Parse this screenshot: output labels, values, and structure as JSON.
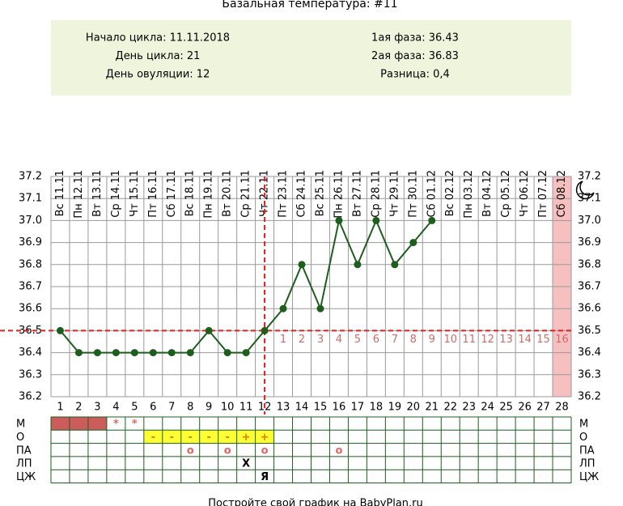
{
  "chart_data": {
    "type": "line",
    "title": "Базальная температура: #11",
    "info": {
      "left": [
        "Начало цикла: 11.11.2018",
        "День цикла: 21",
        "День овуляции: 12"
      ],
      "right": [
        "1ая фаза: 36.43",
        "2ая фаза: 36.83",
        "Разница: 0,4"
      ]
    },
    "x": [
      1,
      2,
      3,
      4,
      5,
      6,
      7,
      8,
      9,
      10,
      11,
      12,
      13,
      14,
      15,
      16,
      17,
      18,
      19,
      20,
      21,
      22,
      23,
      24,
      25,
      26,
      27,
      28
    ],
    "xlim": [
      0.5,
      28.5
    ],
    "date_labels": [
      "Вс 11.11",
      "Пн 12.11",
      "Вт 13.11",
      "Ср 14.11",
      "Чт 15.11",
      "Пт 16.11",
      "Сб 17.11",
      "Вс 18.11",
      "Пн 19.11",
      "Вт 20.11",
      "Ср 21.11",
      "Чт 22.11",
      "Пт 23.11",
      "Сб 24.11",
      "Вс 25.11",
      "Пн 26.11",
      "Вт 27.11",
      "Ср 28.11",
      "Чт 29.11",
      "Пт 30.11",
      "Сб 01.12",
      "Вс 02.12",
      "Пн 03.12",
      "Вт 04.12",
      "Ср 05.12",
      "Чт 06.12",
      "Пт 07.12",
      "Сб 08.12"
    ],
    "series": [
      {
        "color": "#1d5e1d",
        "values": [
          36.5,
          36.4,
          36.4,
          36.4,
          36.4,
          36.4,
          36.4,
          36.4,
          36.5,
          36.4,
          36.4,
          36.5,
          36.6,
          36.8,
          36.6,
          37.0,
          36.8,
          37.0,
          36.8,
          36.9,
          37.0,
          null,
          null,
          null,
          null,
          null,
          null,
          null
        ]
      }
    ],
    "ylim": [
      36.2,
      37.2
    ],
    "yticks": [
      36.2,
      36.3,
      36.4,
      36.5,
      36.6,
      36.7,
      36.8,
      36.9,
      {
        "value": 37,
        "label": "37.0"
      },
      37.1,
      37.2
    ],
    "grid": true,
    "coverline": 36.5,
    "ovulation_day": 12,
    "marker_color": "#e02020",
    "luteal_day_labels": [
      1,
      2,
      3,
      4,
      5,
      6,
      7,
      8,
      9,
      10,
      11,
      12,
      13,
      14,
      15,
      16
    ],
    "luteal_color": "#d06a6a",
    "period_forecast_days": [
      28
    ],
    "period_forecast_color": "#f7c0c0",
    "table": {
      "rows": [
        {
          "label": "М",
          "fill_days": [
            1,
            2,
            3
          ],
          "fill": "#cc5c5c",
          "mark_color": "#e06666",
          "marks": [
            null,
            null,
            null,
            "*",
            "*",
            null,
            null,
            null,
            null,
            null,
            null,
            null,
            null,
            null,
            null,
            null,
            null,
            null,
            null,
            null,
            null,
            null,
            null,
            null,
            null,
            null,
            null,
            null
          ]
        },
        {
          "label": "О",
          "fill_days": [
            6,
            7,
            8,
            9,
            10,
            11,
            12
          ],
          "fill": "#ffff33",
          "mark_color": "#e07a00",
          "marks": [
            null,
            null,
            null,
            null,
            null,
            "-",
            "-",
            "-",
            "-",
            "-",
            "+",
            "+",
            null,
            null,
            null,
            null,
            null,
            null,
            null,
            null,
            null,
            null,
            null,
            null,
            null,
            null,
            null,
            null
          ]
        },
        {
          "label": "ПА",
          "mark_color": "#e06666",
          "marks": [
            null,
            null,
            null,
            null,
            null,
            null,
            null,
            "o",
            null,
            "o",
            null,
            "o",
            null,
            null,
            null,
            "o",
            null,
            null,
            null,
            null,
            null,
            null,
            null,
            null,
            null,
            null,
            null,
            null
          ]
        },
        {
          "label": "ЛП",
          "mark_color": "#000000",
          "marks": [
            null,
            null,
            null,
            null,
            null,
            null,
            null,
            null,
            null,
            null,
            "X",
            null,
            null,
            null,
            null,
            null,
            null,
            null,
            null,
            null,
            null,
            null,
            null,
            null,
            null,
            null,
            null,
            null
          ]
        },
        {
          "label": "ЦЖ",
          "mark_color": "#000000",
          "marks": [
            null,
            null,
            null,
            null,
            null,
            null,
            null,
            null,
            null,
            null,
            null,
            "Я",
            null,
            null,
            null,
            null,
            null,
            null,
            null,
            null,
            null,
            null,
            null,
            null,
            null,
            null,
            null,
            null
          ]
        }
      ]
    },
    "footer": "Постройте свой график на BabyPlan.ru"
  }
}
